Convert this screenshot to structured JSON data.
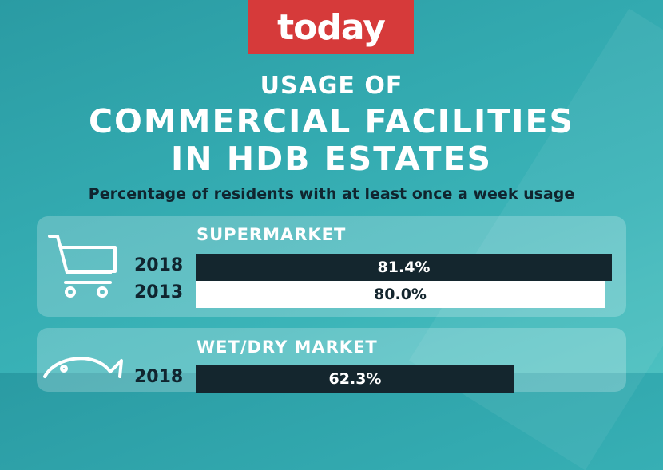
{
  "brand": {
    "logo_text": "today",
    "logo_color": "#d63a3a"
  },
  "title": {
    "line1": "USAGE OF",
    "line2": "COMMERCIAL FACILITIES",
    "line3": "IN HDB ESTATES"
  },
  "subtitle": "Percentage of residents with at least once a week usage",
  "colors": {
    "bar_2018": "#14262e",
    "bar_2013": "#ffffff",
    "background": "#33aab0"
  },
  "chart_data": {
    "type": "bar",
    "orientation": "horizontal",
    "title": "USAGE OF COMMERCIAL FACILITIES IN HDB ESTATES",
    "subtitle": "Percentage of residents with at least once a week usage",
    "categories": [
      "SUPERMARKET",
      "WET/DRY MARKET"
    ],
    "series": [
      {
        "name": "2018",
        "values": [
          81.4,
          62.3
        ],
        "labels": [
          "81.4%",
          "62.3%"
        ]
      },
      {
        "name": "2013",
        "values": [
          80.0,
          null
        ],
        "labels": [
          "80.0%",
          ""
        ]
      }
    ],
    "xlim": [
      0,
      100
    ],
    "grid": false
  },
  "panels": [
    {
      "category": "SUPERMARKET",
      "icon": "shopping-cart-icon"
    },
    {
      "category": "WET/DRY MARKET",
      "icon": "fish-icon"
    }
  ]
}
